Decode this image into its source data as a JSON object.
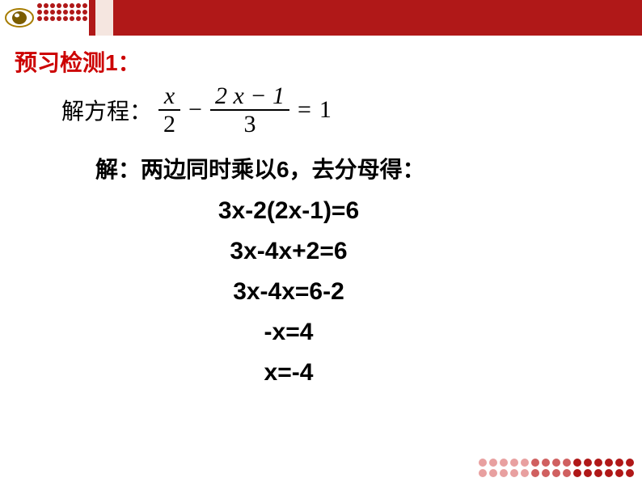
{
  "colors": {
    "header_bg": "#b01818",
    "title_color": "#cc0000",
    "text_color": "#000000",
    "page_bg": "#ffffff",
    "dot_dark": "#b01818",
    "dot_light": "#e8a0a0"
  },
  "title": "预习检测1：",
  "equation": {
    "label": "解方程：",
    "frac1_num": "x",
    "frac1_den": "2",
    "minus": "−",
    "frac2_num": "2 x − 1",
    "frac2_den": "3",
    "equals": "=",
    "rhs": "1"
  },
  "solution_intro": "解：两边同时乘以6，去分母得：",
  "steps": [
    "3x-2(2x-1)=6",
    "3x-4x+2=6",
    "3x-4x=6-2",
    "-x=4",
    "x=-4"
  ],
  "typography": {
    "title_fontsize": 28,
    "equation_fontsize": 30,
    "step_fontsize": 30
  }
}
